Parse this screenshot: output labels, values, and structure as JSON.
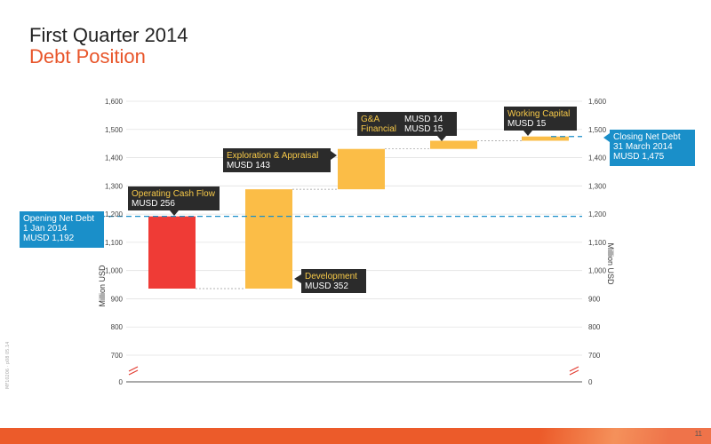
{
  "header": {
    "title": "First Quarter 2014",
    "subtitle": "Debt Position"
  },
  "footer": {
    "page_number": "11",
    "side_note": "MF10206 · p08 05.14"
  },
  "colors": {
    "accent": "#ec5b2a",
    "negative_bar": "#ef3b36",
    "bar": "#fbbd47",
    "label_box": "#2b2b2b",
    "label_title": "#f7c948",
    "callout": "#1a8fc9",
    "reference_line": "#1a8fc9"
  },
  "chart_data": {
    "type": "waterfall",
    "ylabel": "Million USD",
    "y2label": "Million USD",
    "yticks": [
      0,
      700,
      800,
      900,
      1000,
      1100,
      1200,
      1300,
      1400,
      1500,
      1600
    ],
    "ytick_labels": [
      "0",
      "700",
      "800",
      "900",
      "1,000",
      "1,100",
      "1,200",
      "1,300",
      "1,400",
      "1,500",
      "1,600"
    ],
    "axis_break": true,
    "ylim": [
      700,
      1600
    ],
    "start": {
      "label": "Opening Net Debt",
      "date": "1 Jan 2014",
      "value_label": "MUSD  1,192",
      "value": 1192
    },
    "end": {
      "label": "Closing Net Debt",
      "date": "31 March 2014",
      "value_label": "MUSD  1,475",
      "value": 1475
    },
    "steps": [
      {
        "label": "Operating Cash Flow",
        "value_label": "MUSD 256",
        "delta": -256,
        "from": 1192,
        "to": 936
      },
      {
        "label": "Development",
        "value_label": "MUSD 352",
        "delta": 352,
        "from": 936,
        "to": 1288
      },
      {
        "label": "Exploration & Appraisal",
        "value_label": "MUSD 143",
        "delta": 143,
        "from": 1288,
        "to": 1431
      },
      {
        "labels": [
          "G&A",
          "Financial"
        ],
        "value_labels": [
          "MUSD 14",
          "MUSD 15"
        ],
        "delta": 29,
        "from": 1431,
        "to": 1460
      },
      {
        "label": "Working Capital",
        "value_label": "MUSD 15",
        "delta": 15,
        "from": 1460,
        "to": 1475
      }
    ]
  }
}
